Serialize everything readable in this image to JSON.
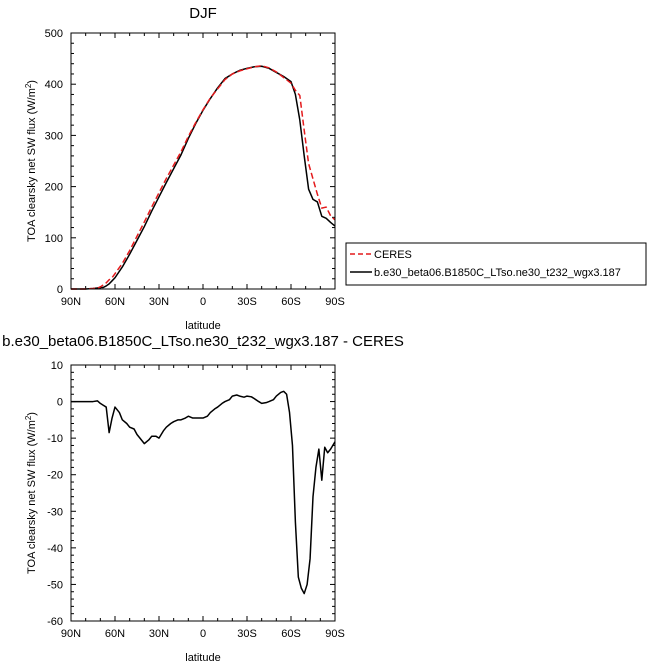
{
  "chart_data": [
    {
      "type": "line",
      "title": "DJF",
      "xlabel": "latitude",
      "ylabel": "TOA clearsky net SW flux (W/m",
      "ylabel_sup": "2",
      "ylabel_tail": ")",
      "xlim": [
        90,
        -90
      ],
      "ylim": [
        0,
        500
      ],
      "x_ticks": [
        90,
        60,
        30,
        0,
        -30,
        -60,
        -90
      ],
      "x_tick_labels": [
        "90N",
        "60N",
        "30N",
        "0",
        "30S",
        "60S",
        "90S"
      ],
      "y_ticks": [
        0,
        100,
        200,
        300,
        400,
        500
      ],
      "y_tick_labels": [
        "0",
        "100",
        "200",
        "300",
        "400",
        "500"
      ],
      "legend": "outside-right",
      "series": [
        {
          "name": "CERES",
          "color": "#e41a1c",
          "dash": "dashed",
          "x": [
            90,
            80,
            75,
            72,
            70,
            68,
            66,
            64,
            62,
            60,
            55,
            50,
            45,
            40,
            35,
            30,
            25,
            20,
            15,
            10,
            5,
            0,
            -5,
            -10,
            -15,
            -20,
            -25,
            -30,
            -35,
            -40,
            -45,
            -50,
            -55,
            -60,
            -63,
            -66,
            -69,
            -72,
            -75,
            -78,
            -81,
            -84,
            -87,
            -90
          ],
          "y": [
            0,
            0,
            1,
            2,
            4,
            8,
            12,
            18,
            22,
            30,
            50,
            75,
            103,
            131,
            160,
            188,
            216,
            242,
            268,
            298,
            325,
            350,
            373,
            391,
            409,
            420,
            426,
            430,
            434,
            436,
            432,
            424,
            413,
            402,
            388,
            378,
            310,
            245,
            215,
            185,
            158,
            160,
            143,
            135
          ]
        },
        {
          "name": "b.e30_beta06.B1850C_LTso.ne30_t232_wgx3.187",
          "color": "#000000",
          "dash": "solid",
          "x": [
            90,
            80,
            75,
            72,
            70,
            68,
            66,
            64,
            62,
            60,
            55,
            50,
            45,
            40,
            35,
            30,
            25,
            20,
            15,
            10,
            5,
            0,
            -5,
            -10,
            -15,
            -20,
            -25,
            -30,
            -35,
            -40,
            -45,
            -50,
            -55,
            -60,
            -63,
            -66,
            -69,
            -72,
            -75,
            -78,
            -81,
            -84,
            -87,
            -90
          ],
          "y": [
            0,
            0,
            1,
            2,
            3,
            3,
            6,
            10,
            16,
            22,
            43,
            68,
            95,
            122,
            152,
            180,
            208,
            235,
            262,
            294,
            323,
            349,
            372,
            393,
            411,
            420,
            427,
            431,
            434,
            435,
            431,
            423,
            415,
            405,
            380,
            330,
            260,
            195,
            175,
            170,
            142,
            138,
            130,
            123
          ]
        }
      ]
    },
    {
      "type": "line",
      "title": "b.e30_beta06.B1850C_LTso.ne30_t232_wgx3.187 - CERES",
      "xlabel": "latitude",
      "ylabel": "TOA clearsky net SW flux (W/m",
      "ylabel_sup": "2",
      "ylabel_tail": ")",
      "xlim": [
        90,
        -90
      ],
      "ylim": [
        -60,
        10
      ],
      "x_ticks": [
        90,
        60,
        30,
        0,
        -30,
        -60,
        -90
      ],
      "x_tick_labels": [
        "90N",
        "60N",
        "30N",
        "0",
        "30S",
        "60S",
        "90S"
      ],
      "y_ticks": [
        10,
        0,
        -10,
        -20,
        -30,
        -40,
        -50,
        -60
      ],
      "y_tick_labels": [
        "10",
        "0",
        "-10",
        "-20",
        "-30",
        "-40",
        "-50",
        "-60"
      ],
      "series": [
        {
          "color": "#000000",
          "dash": "solid",
          "x": [
            90,
            80,
            75,
            72,
            70,
            68,
            66,
            64,
            62,
            60,
            57,
            55,
            52,
            50,
            47,
            45,
            43,
            40,
            37,
            35,
            32,
            30,
            27,
            25,
            22,
            20,
            17,
            15,
            12,
            10,
            7,
            5,
            2,
            0,
            -3,
            -5,
            -8,
            -10,
            -13,
            -15,
            -18,
            -20,
            -23,
            -25,
            -28,
            -30,
            -33,
            -35,
            -38,
            -40,
            -43,
            -45,
            -48,
            -50,
            -53,
            -55,
            -57,
            -59,
            -61,
            -63,
            -65,
            -67,
            -69,
            -71,
            -73,
            -75,
            -77,
            -79,
            -81,
            -83,
            -85,
            -87,
            -90
          ],
          "y": [
            0,
            0,
            0,
            0.2,
            -0.5,
            -1,
            -1.5,
            -8.5,
            -4.5,
            -1.5,
            -3,
            -5,
            -6,
            -7,
            -7.5,
            -9,
            -10,
            -11.5,
            -10.5,
            -9.5,
            -9.5,
            -10,
            -8,
            -7,
            -6,
            -5.5,
            -5,
            -5,
            -4.5,
            -4,
            -4.5,
            -4.5,
            -4.5,
            -4.5,
            -4,
            -3,
            -2,
            -1.5,
            -0.5,
            0,
            0.5,
            1.5,
            1.8,
            1.5,
            1.2,
            1.5,
            1.3,
            0.8,
            0,
            -0.5,
            -0.3,
            0,
            0.5,
            1.5,
            2.5,
            2.8,
            2,
            -3,
            -12,
            -33,
            -48,
            -51,
            -52.5,
            -50,
            -43,
            -26,
            -18,
            -13,
            -21.5,
            -12.5,
            -14,
            -13,
            -11
          ]
        }
      ]
    }
  ]
}
